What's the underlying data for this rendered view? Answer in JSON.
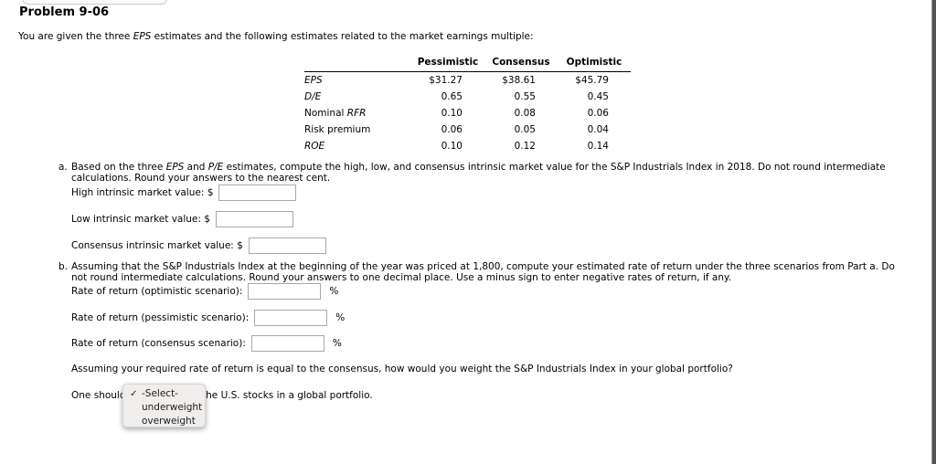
{
  "page": {
    "title": "Problem 9-06"
  },
  "intro": {
    "s1": "You are given the three ",
    "s2": "EPS",
    "s3": " estimates and the following estimates related to the market earnings multiple:"
  },
  "table": {
    "headers": [
      "Pessimistic",
      "Consensus",
      "Optimistic"
    ],
    "rows": [
      {
        "label_pre": "",
        "label_italic": "EPS",
        "values": [
          "$31.27",
          "$38.61",
          "$45.79"
        ]
      },
      {
        "label_pre": "",
        "label_italic": "D/E",
        "values": [
          "0.65",
          "0.55",
          "0.45"
        ]
      },
      {
        "label_pre": "Nominal ",
        "label_italic": "RFR",
        "values": [
          "0.10",
          "0.08",
          "0.06"
        ]
      },
      {
        "label_pre": "Risk premium",
        "label_italic": "",
        "values": [
          "0.06",
          "0.05",
          "0.04"
        ]
      },
      {
        "label_pre": "",
        "label_italic": "ROE",
        "values": [
          "0.10",
          "0.12",
          "0.14"
        ]
      }
    ]
  },
  "part_a": {
    "marker": "a.",
    "l1s1": "Based on the three ",
    "l1s2": "EPS",
    "l1s3": " and ",
    "l1s4": "P/E",
    "l1s5": " estimates, compute the high, low, and consensus intrinsic market value for the S&P Industrials Index in 2018. Do not round intermediate",
    "line2": "calculations. Round your answers to the nearest cent.",
    "fields": [
      {
        "label": "High intrinsic market value: $",
        "value": ""
      },
      {
        "label": "Low intrinsic market value: $",
        "value": ""
      },
      {
        "label": "Consensus intrinsic market value: $",
        "value": ""
      }
    ]
  },
  "part_b": {
    "marker": "b.",
    "line1": "Assuming that the S&P Industrials Index at the beginning of the year was priced at 1,800, compute your estimated rate of return under the three scenarios from Part a. Do",
    "line2": "not round intermediate calculations. Round your answers to one decimal place. Use a minus sign to enter negative rates of return, if any.",
    "fields": [
      {
        "label": "Rate of return (optimistic scenario):",
        "suffix": "%",
        "value": ""
      },
      {
        "label": "Rate of return (pessimistic scenario):",
        "suffix": "%",
        "value": ""
      },
      {
        "label": "Rate of return (consensus scenario):",
        "suffix": "%",
        "value": ""
      }
    ],
    "question": "Assuming your required rate of return is equal to the consensus, how would you weight the S&P Industrials Index in your global portfolio?",
    "final_pre": "One should",
    "final_post": "the U.S. stocks in a global portfolio."
  },
  "dropdown": {
    "checkmark": "✓",
    "selected": "-Select-",
    "options": [
      "-Select-",
      "underweight",
      "overweight"
    ]
  },
  "colors": {
    "text": "#000000",
    "table_rule": "#000000",
    "input_border": "#a9a9a9",
    "menu_background": "#f0eeec",
    "edge_bar": "#545454"
  }
}
